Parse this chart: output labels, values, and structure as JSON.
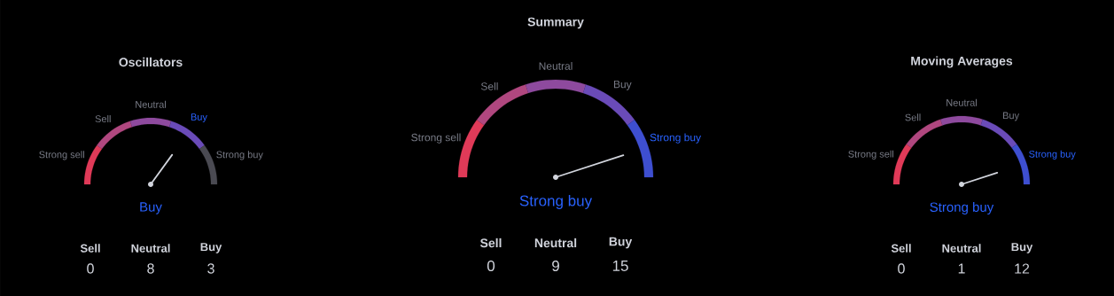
{
  "chart_data": [
    {
      "type": "donut",
      "title": "Oscillators",
      "categories": [
        "Strong sell",
        "Sell",
        "Neutral",
        "Buy",
        "Strong buy"
      ],
      "values": [
        20,
        20,
        20,
        20,
        20
      ],
      "colors": [
        "#e03a58",
        "#b0477f",
        "#8e4a9e",
        "#6a4bb8",
        "#4a4a52"
      ],
      "needle": "Buy",
      "annotations": [
        "Buy"
      ]
    },
    {
      "type": "other",
      "categories": [
        "Sell",
        "Neutral",
        "Buy"
      ],
      "values": [
        0,
        8,
        3
      ],
      "data_labels": true
    },
    {
      "type": "donut",
      "title": "Summary",
      "categories": [
        "Strong sell",
        "Sell",
        "Neutral",
        "Buy",
        "Strong buy"
      ],
      "values": [
        20,
        20,
        20,
        20,
        20
      ],
      "colors": [
        "#e03a58",
        "#b0477f",
        "#8e4a9e",
        "#6a4bb8",
        "#3e4fd0"
      ],
      "needle": "Strong buy",
      "annotations": [
        "Strong buy"
      ]
    },
    {
      "type": "other",
      "categories": [
        "Sell",
        "Neutral",
        "Buy"
      ],
      "values": [
        0,
        9,
        15
      ],
      "data_labels": true
    },
    {
      "type": "donut",
      "title": "Moving Averages",
      "categories": [
        "Strong sell",
        "Sell",
        "Neutral",
        "Buy",
        "Strong buy"
      ],
      "values": [
        20,
        20,
        20,
        20,
        20
      ],
      "colors": [
        "#e03a58",
        "#b0477f",
        "#8e4a9e",
        "#6a4bb8",
        "#3e4fd0"
      ],
      "needle": "Strong buy",
      "annotations": [
        "Strong buy"
      ]
    },
    {
      "type": "other",
      "categories": [
        "Sell",
        "Neutral",
        "Buy"
      ],
      "values": [
        0,
        1,
        12
      ],
      "data_labels": true
    }
  ]
}
